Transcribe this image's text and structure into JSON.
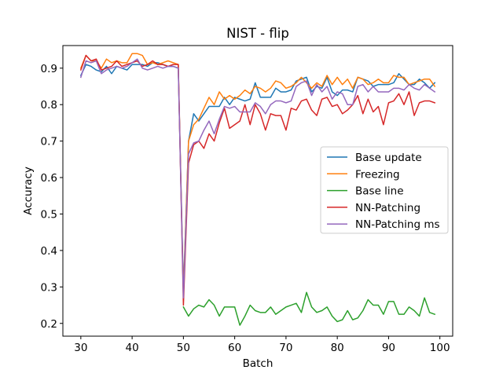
{
  "chart_data": {
    "type": "line",
    "title": "NIST - flip",
    "xlabel": "Batch",
    "ylabel": "Accuracy",
    "xlim": [
      26.5,
      102.5
    ],
    "ylim": [
      0.165,
      0.962
    ],
    "xticks": [
      30,
      40,
      50,
      60,
      70,
      80,
      90,
      100
    ],
    "yticks": [
      0.2,
      0.3,
      0.4,
      0.5,
      0.6,
      0.7,
      0.8,
      0.9
    ],
    "tick_labels_x": [
      "30",
      "40",
      "50",
      "60",
      "70",
      "80",
      "90",
      "100"
    ],
    "tick_labels_y": [
      "0.2",
      "0.3",
      "0.4",
      "0.5",
      "0.6",
      "0.7",
      "0.8",
      "0.9"
    ],
    "grid": false,
    "legend_position": "center-right",
    "x": [
      30,
      31,
      32,
      33,
      34,
      35,
      36,
      37,
      38,
      39,
      40,
      41,
      42,
      43,
      44,
      45,
      46,
      47,
      48,
      49,
      50,
      51,
      52,
      53,
      54,
      55,
      56,
      57,
      58,
      59,
      60,
      61,
      62,
      63,
      64,
      65,
      66,
      67,
      68,
      69,
      70,
      71,
      72,
      73,
      74,
      75,
      76,
      77,
      78,
      79,
      80,
      81,
      82,
      83,
      84,
      85,
      86,
      87,
      88,
      89,
      90,
      91,
      92,
      93,
      94,
      95,
      96,
      97,
      98,
      99
    ],
    "series": [
      {
        "name": "Base update",
        "color": "#1f77b4",
        "values": [
          0.88,
          0.91,
          0.905,
          0.895,
          0.89,
          0.905,
          0.885,
          0.905,
          0.9,
          0.895,
          0.91,
          0.91,
          0.91,
          0.905,
          0.915,
          0.915,
          0.91,
          0.905,
          0.905,
          0.9,
          0.29,
          0.7,
          0.775,
          0.755,
          0.775,
          0.795,
          0.795,
          0.795,
          0.82,
          0.8,
          0.82,
          0.815,
          0.81,
          0.815,
          0.86,
          0.82,
          0.82,
          0.82,
          0.845,
          0.835,
          0.835,
          0.84,
          0.865,
          0.87,
          0.875,
          0.835,
          0.85,
          0.845,
          0.875,
          0.835,
          0.825,
          0.84,
          0.84,
          0.835,
          0.875,
          0.87,
          0.865,
          0.85,
          0.855,
          0.855,
          0.855,
          0.86,
          0.885,
          0.87,
          0.855,
          0.855,
          0.87,
          0.86,
          0.845,
          0.86
        ]
      },
      {
        "name": "Freezing",
        "color": "#ff7f0e",
        "values": [
          0.9,
          0.935,
          0.92,
          0.92,
          0.9,
          0.925,
          0.915,
          0.92,
          0.915,
          0.915,
          0.94,
          0.94,
          0.935,
          0.91,
          0.915,
          0.91,
          0.915,
          0.92,
          0.915,
          0.91,
          0.28,
          0.7,
          0.745,
          0.76,
          0.79,
          0.82,
          0.8,
          0.835,
          0.815,
          0.825,
          0.815,
          0.825,
          0.84,
          0.83,
          0.85,
          0.845,
          0.835,
          0.845,
          0.865,
          0.86,
          0.845,
          0.85,
          0.86,
          0.875,
          0.86,
          0.845,
          0.86,
          0.85,
          0.88,
          0.855,
          0.875,
          0.855,
          0.87,
          0.845,
          0.875,
          0.87,
          0.855,
          0.86,
          0.87,
          0.86,
          0.86,
          0.88,
          0.875,
          0.875,
          0.855,
          0.86,
          0.865,
          0.87,
          0.87,
          0.85
        ]
      },
      {
        "name": "Base line",
        "color": "#2ca02c",
        "values": [
          null,
          null,
          null,
          null,
          null,
          null,
          null,
          null,
          null,
          null,
          null,
          null,
          null,
          null,
          null,
          null,
          null,
          null,
          null,
          null,
          0.245,
          0.22,
          0.24,
          0.25,
          0.245,
          0.265,
          0.25,
          0.22,
          0.245,
          0.245,
          0.245,
          0.195,
          0.22,
          0.25,
          0.235,
          0.23,
          0.23,
          0.245,
          0.225,
          0.235,
          0.245,
          0.25,
          0.255,
          0.23,
          0.285,
          0.245,
          0.23,
          0.235,
          0.245,
          0.22,
          0.205,
          0.21,
          0.235,
          0.21,
          0.215,
          0.235,
          0.265,
          0.25,
          0.25,
          0.225,
          0.26,
          0.26,
          0.225,
          0.225,
          0.245,
          0.235,
          0.22,
          0.27,
          0.23,
          0.225
        ]
      },
      {
        "name": "NN-Patching",
        "color": "#d62728",
        "values": [
          0.895,
          0.935,
          0.92,
          0.925,
          0.895,
          0.9,
          0.905,
          0.92,
          0.905,
          0.91,
          0.915,
          0.92,
          0.905,
          0.91,
          0.92,
          0.91,
          0.91,
          0.905,
          0.91,
          0.91,
          0.25,
          0.64,
          0.69,
          0.7,
          0.68,
          0.72,
          0.7,
          0.75,
          0.79,
          0.735,
          0.745,
          0.755,
          0.8,
          0.745,
          0.8,
          0.775,
          0.73,
          0.775,
          0.77,
          0.77,
          0.73,
          0.79,
          0.785,
          0.81,
          0.815,
          0.785,
          0.77,
          0.815,
          0.82,
          0.795,
          0.8,
          0.775,
          0.785,
          0.8,
          0.825,
          0.775,
          0.815,
          0.78,
          0.795,
          0.745,
          0.805,
          0.81,
          0.83,
          0.8,
          0.835,
          0.77,
          0.805,
          0.81,
          0.81,
          0.805
        ]
      },
      {
        "name": "NN-Patching ms",
        "color": "#9467bd",
        "values": [
          0.875,
          0.92,
          0.915,
          0.92,
          0.885,
          0.895,
          0.9,
          0.905,
          0.9,
          0.905,
          0.915,
          0.925,
          0.9,
          0.895,
          0.9,
          0.905,
          0.9,
          0.905,
          0.905,
          0.9,
          0.27,
          0.665,
          0.695,
          0.7,
          0.73,
          0.755,
          0.72,
          0.76,
          0.795,
          0.79,
          0.795,
          0.78,
          0.78,
          0.78,
          0.805,
          0.795,
          0.775,
          0.8,
          0.81,
          0.81,
          0.805,
          0.81,
          0.85,
          0.86,
          0.865,
          0.825,
          0.855,
          0.835,
          0.85,
          0.815,
          0.835,
          0.83,
          0.8,
          0.8,
          0.85,
          0.855,
          0.835,
          0.85,
          0.835,
          0.835,
          0.835,
          0.845,
          0.845,
          0.84,
          0.855,
          0.845,
          0.84,
          0.855,
          0.845,
          0.835
        ]
      }
    ]
  }
}
